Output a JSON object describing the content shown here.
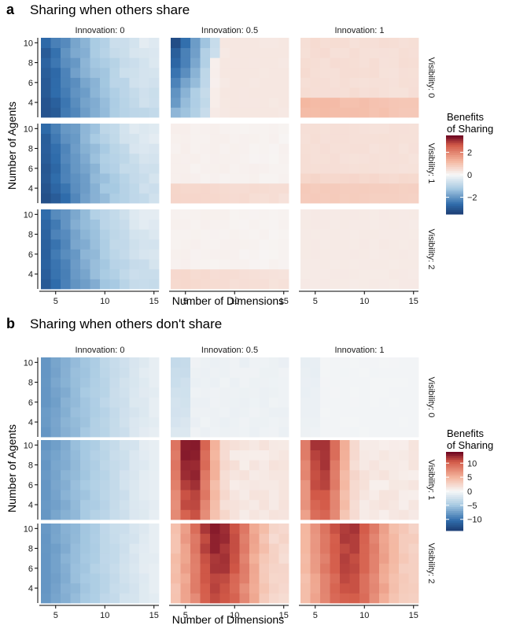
{
  "colors": {
    "negative_dark": "#1d3d73",
    "negative_mid": "#2f6cab",
    "negative_light": "#a9cbe3",
    "neutral": "#f7f7f7",
    "positive_light": "#f4b59e",
    "positive_mid": "#d35a48",
    "positive_dark": "#67001f",
    "axis": "#000000",
    "text": "#1a1a1a"
  },
  "chart_data": [
    {
      "type": "heatmap",
      "panel_letter": "a",
      "title": "Sharing when others share",
      "xlabel": "Number of Dimensions",
      "ylabel": "Number of Agents",
      "x_values": [
        4,
        5,
        6,
        7,
        8,
        9,
        10,
        11,
        12,
        13,
        14,
        15
      ],
      "y_values": [
        3,
        4,
        5,
        6,
        7,
        8,
        9,
        10
      ],
      "x_ticks": [
        5,
        10,
        15
      ],
      "y_ticks": [
        4,
        6,
        8,
        10
      ],
      "column_facets": [
        "Innovation: 0",
        "Innovation: 0.5",
        "Innovation: 1"
      ],
      "row_facets": [
        "Visibility: 0",
        "Visibility: 1",
        "Visibility: 2"
      ],
      "legend": {
        "title_line1": "Benefits",
        "title_line2": "of Sharing",
        "limit": 3.5,
        "ticks": [
          2,
          0,
          -2
        ],
        "tick_labels": [
          "2",
          "0",
          "−2"
        ]
      },
      "value_ranges": {
        "Innovation: 0": {
          "Visibility: 0": [
            -3.2,
            -0.3
          ],
          "Visibility: 1": [
            -3.2,
            -0.3
          ],
          "Visibility: 2": [
            -3.0,
            -0.3
          ]
        },
        "Innovation: 0.5": {
          "Visibility: 0": [
            -3.2,
            0.3
          ],
          "Visibility: 1": [
            0.0,
            0.9
          ],
          "Visibility: 2": [
            0.0,
            0.8
          ]
        },
        "Innovation: 1": {
          "Visibility: 0": [
            0.3,
            1.5
          ],
          "Visibility: 1": [
            0.2,
            0.9
          ],
          "Visibility: 2": [
            0.1,
            0.5
          ]
        }
      }
    },
    {
      "type": "heatmap",
      "panel_letter": "b",
      "title": "Sharing when others don't share",
      "xlabel": "Number of Dimensions",
      "ylabel": "Number of Agents",
      "x_values": [
        4,
        5,
        6,
        7,
        8,
        9,
        10,
        11,
        12,
        13,
        14,
        15
      ],
      "y_values": [
        3,
        4,
        5,
        6,
        7,
        8,
        9,
        10
      ],
      "x_ticks": [
        5,
        10,
        15
      ],
      "y_ticks": [
        4,
        6,
        8,
        10
      ],
      "column_facets": [
        "Innovation: 0",
        "Innovation: 0.5",
        "Innovation: 1"
      ],
      "row_facets": [
        "Visibility: 0",
        "Visibility: 1",
        "Visibility: 2"
      ],
      "legend": {
        "title_line1": "Benefits",
        "title_line2": "of Sharing",
        "limit": 14,
        "ticks": [
          10,
          5,
          0,
          -5,
          -10
        ],
        "tick_labels": [
          "10",
          "5",
          "0",
          "−5",
          "−10"
        ]
      },
      "value_ranges": {
        "Innovation: 0": {
          "Visibility: 0": [
            -8,
            -1
          ],
          "Visibility: 1": [
            -8,
            -1
          ],
          "Visibility: 2": [
            -8,
            -1
          ]
        },
        "Innovation: 0.5": {
          "Visibility: 0": [
            -5,
            -0.3
          ],
          "Visibility: 1": [
            0.5,
            13
          ],
          "Visibility: 2": [
            1,
            13
          ]
        },
        "Innovation: 1": {
          "Visibility: 0": [
            -1.5,
            -0.2
          ],
          "Visibility: 1": [
            0.5,
            12
          ],
          "Visibility: 2": [
            2,
            12
          ]
        }
      }
    }
  ]
}
